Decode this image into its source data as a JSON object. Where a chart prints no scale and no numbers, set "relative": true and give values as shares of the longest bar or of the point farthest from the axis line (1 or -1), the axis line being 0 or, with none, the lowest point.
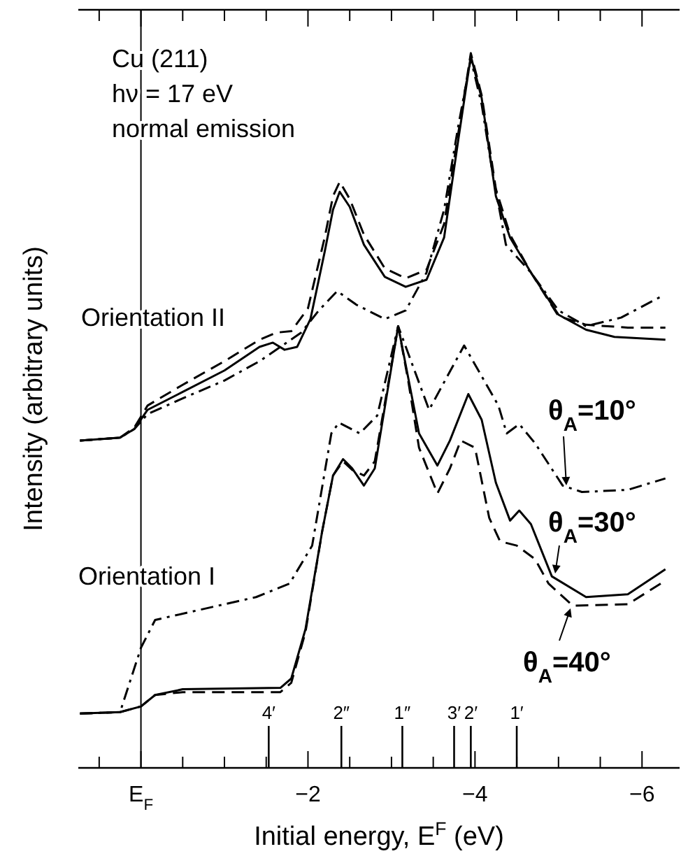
{
  "chart_data": {
    "type": "line",
    "relative": true,
    "xlabel": "Initial energy, E$^{F}$ (eV)",
    "ylabel": "Intensity (arbitrary units)",
    "xlim": [
      0.75,
      -6.45
    ],
    "xticks": [
      {
        "value": 0.5,
        "label": null
      },
      {
        "value": 0,
        "label": "E$_{F}$"
      },
      {
        "value": -0.5,
        "label": null
      },
      {
        "value": -1,
        "label": null
      },
      {
        "value": -1.5,
        "label": null
      },
      {
        "value": -2,
        "label": "−2"
      },
      {
        "value": -2.5,
        "label": null
      },
      {
        "value": -3,
        "label": null
      },
      {
        "value": -3.5,
        "label": null
      },
      {
        "value": -4,
        "label": "−4"
      },
      {
        "value": -4.5,
        "label": null
      },
      {
        "value": -5,
        "label": null
      },
      {
        "value": -5.5,
        "label": null
      },
      {
        "value": -6,
        "label": "−6"
      }
    ],
    "grid": false,
    "legend": "right",
    "marker": "none",
    "annotations": [
      "Cu (211)",
      "hν = 17 eV",
      "normal emission",
      "Orientation II",
      "Orientation I"
    ],
    "ref_lines": [
      {
        "axis": "x",
        "value": 0
      },
      {
        "axis": "x",
        "value": -1.53,
        "label": "4′"
      },
      {
        "axis": "x",
        "value": -2.4,
        "label": "2″"
      },
      {
        "axis": "x",
        "value": -3.13,
        "label": "1″"
      },
      {
        "axis": "x",
        "value": -3.75,
        "label": "3′"
      },
      {
        "axis": "x",
        "value": -3.95,
        "label": "2′"
      },
      {
        "axis": "x",
        "value": -4.5,
        "label": "1′"
      }
    ],
    "series": [
      {
        "color": "#000000",
        "line_style": "solid",
        "x": [
          0.73,
          0.25,
          0.08,
          -0.08,
          -0.5,
          -1,
          -1.42,
          -1.58,
          -1.72,
          -1.87,
          -2.03,
          -2.2,
          -2.3,
          -2.38,
          -2.5,
          -2.67,
          -2.92,
          -3.17,
          -3.42,
          -3.63,
          -3.8,
          -3.95,
          -4.08,
          -4.25,
          -4.42,
          -4.67,
          -5,
          -5.33,
          -5.67,
          -6.28
        ],
        "values": [
          0.458,
          0.462,
          0.474,
          0.501,
          0.526,
          0.556,
          0.589,
          0.595,
          0.585,
          0.589,
          0.628,
          0.722,
          0.781,
          0.806,
          0.785,
          0.732,
          0.687,
          0.673,
          0.683,
          0.742,
          0.879,
          0.996,
          0.937,
          0.8,
          0.742,
          0.693,
          0.634,
          0.613,
          0.603,
          0.599
        ]
      },
      {
        "color": "#000000",
        "line_style": "dashed",
        "x": [
          0.73,
          0.25,
          0.08,
          -0.08,
          -0.5,
          -1,
          -1.42,
          -1.62,
          -1.8,
          -2,
          -2.2,
          -2.3,
          -2.38,
          -2.5,
          -2.67,
          -2.92,
          -3.17,
          -3.42,
          -3.63,
          -3.8,
          -3.95,
          -4.08,
          -4.25,
          -4.42,
          -4.67,
          -5,
          -5.33,
          -5.83,
          -6.28
        ],
        "values": [
          0.458,
          0.462,
          0.476,
          0.507,
          0.536,
          0.569,
          0.599,
          0.609,
          0.611,
          0.643,
          0.742,
          0.8,
          0.82,
          0.796,
          0.746,
          0.699,
          0.685,
          0.697,
          0.761,
          0.888,
          1.0,
          0.941,
          0.81,
          0.746,
          0.693,
          0.632,
          0.62,
          0.616,
          0.616
        ]
      },
      {
        "color": "#000000",
        "line_style": "dashdot",
        "x": [
          0.73,
          0.25,
          0.08,
          -0.08,
          -0.5,
          -1,
          -1.42,
          -1.67,
          -1.92,
          -2.13,
          -2.35,
          -2.58,
          -2.92,
          -3.17,
          -3.42,
          -3.63,
          -3.8,
          -3.95,
          -4.08,
          -4.2,
          -4.37,
          -4.67,
          -5,
          -5.33,
          -5.75,
          -6.22
        ],
        "values": [
          0.458,
          0.462,
          0.474,
          0.495,
          0.517,
          0.542,
          0.569,
          0.589,
          0.609,
          0.64,
          0.667,
          0.648,
          0.628,
          0.64,
          0.693,
          0.781,
          0.898,
          0.992,
          0.928,
          0.84,
          0.732,
          0.693,
          0.64,
          0.618,
          0.63,
          0.659
        ]
      },
      {
        "name": "θ$_{A}$=10°",
        "color": "#000000",
        "line_style": "dashdot",
        "x": [
          0.73,
          0.25,
          0,
          -0.17,
          -1.38,
          -1.78,
          -2.05,
          -2.28,
          -2.37,
          -2.62,
          -2.83,
          -3.08,
          -3.45,
          -3.87,
          -4.28,
          -4.38,
          -4.53,
          -4.72,
          -5.05,
          -5.28,
          -5.83,
          -6.28
        ],
        "values": [
          0.076,
          0.078,
          0.168,
          0.207,
          0.239,
          0.258,
          0.311,
          0.468,
          0.483,
          0.468,
          0.493,
          0.618,
          0.501,
          0.591,
          0.507,
          0.468,
          0.481,
          0.454,
          0.395,
          0.386,
          0.389,
          0.405
        ]
      },
      {
        "name": "θ$_{A}$=30°",
        "color": "#000000",
        "line_style": "solid",
        "x": [
          0.73,
          0.25,
          0,
          -0.17,
          -0.5,
          -1.67,
          -1.8,
          -1.97,
          -2.17,
          -2.3,
          -2.42,
          -2.53,
          -2.67,
          -2.8,
          -2.95,
          -3.08,
          -3.2,
          -3.33,
          -3.55,
          -3.7,
          -3.92,
          -4.08,
          -4.25,
          -4.42,
          -4.53,
          -4.67,
          -4.92,
          -5.33,
          -5.83,
          -6.28
        ],
        "values": [
          0.076,
          0.078,
          0.086,
          0.102,
          0.11,
          0.112,
          0.125,
          0.194,
          0.331,
          0.409,
          0.432,
          0.419,
          0.395,
          0.419,
          0.526,
          0.618,
          0.546,
          0.468,
          0.423,
          0.458,
          0.523,
          0.487,
          0.399,
          0.346,
          0.36,
          0.341,
          0.268,
          0.239,
          0.243,
          0.278
        ]
      },
      {
        "name": "θ$_{A}$=40°",
        "color": "#000000",
        "line_style": "dashed",
        "x": [
          0.73,
          0.25,
          0,
          -0.17,
          -0.5,
          -1.67,
          -1.8,
          -1.97,
          -2.17,
          -2.3,
          -2.42,
          -2.53,
          -2.67,
          -2.8,
          -2.95,
          -3.08,
          -3.2,
          -3.33,
          -3.55,
          -3.7,
          -3.83,
          -4,
          -4.17,
          -4.3,
          -4.5,
          -4.72,
          -4.88,
          -5.17,
          -5.83,
          -6.28
        ],
        "values": [
          0.076,
          0.078,
          0.086,
          0.102,
          0.106,
          0.106,
          0.119,
          0.19,
          0.331,
          0.409,
          0.429,
          0.417,
          0.409,
          0.429,
          0.53,
          0.618,
          0.542,
          0.448,
          0.384,
          0.419,
          0.458,
          0.448,
          0.35,
          0.317,
          0.311,
          0.292,
          0.258,
          0.227,
          0.229,
          0.262
        ]
      }
    ]
  }
}
